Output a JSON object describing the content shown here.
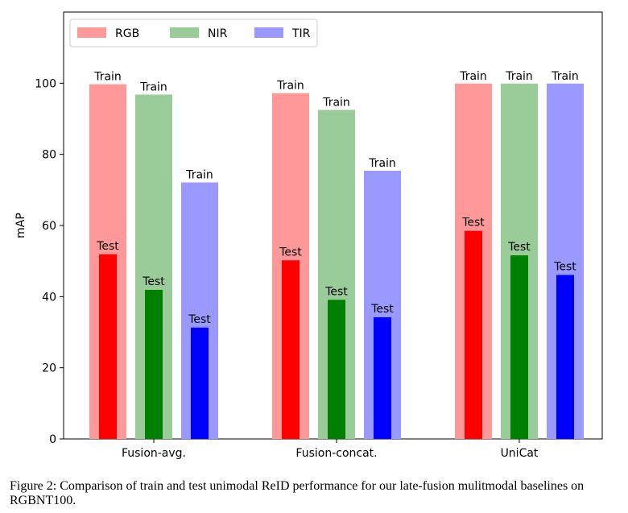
{
  "chart_data": {
    "type": "bar",
    "categories": [
      "Fusion-avg.",
      "Fusion-concat.",
      "UniCat"
    ],
    "ylabel": "mAP",
    "ylim": [
      0,
      120
    ],
    "yticks": [
      0,
      20,
      40,
      60,
      80,
      100
    ],
    "legend": {
      "placement": "top-left",
      "entries": [
        "RGB",
        "NIR",
        "TIR"
      ]
    },
    "grid": false,
    "train_label": "Train",
    "test_label": "Test",
    "series": [
      {
        "name": "RGB",
        "train_color": "#ff9999",
        "test_color": "#ff0000",
        "train": [
          99.7,
          97.2,
          99.9
        ],
        "test": [
          51.9,
          50.2,
          58.5
        ]
      },
      {
        "name": "NIR",
        "train_color": "#99cc99",
        "test_color": "#008000",
        "train": [
          96.8,
          92.5,
          99.9
        ],
        "test": [
          41.9,
          39.1,
          51.6
        ]
      },
      {
        "name": "TIR",
        "train_color": "#9999ff",
        "test_color": "#0000ff",
        "train": [
          72.1,
          75.4,
          99.9
        ],
        "test": [
          31.3,
          34.2,
          46.1
        ]
      }
    ]
  },
  "caption": "Figure 2: Comparison of train and test unimodal ReID performance for our late-fusion mulitmodal baselines on RGBNT100."
}
